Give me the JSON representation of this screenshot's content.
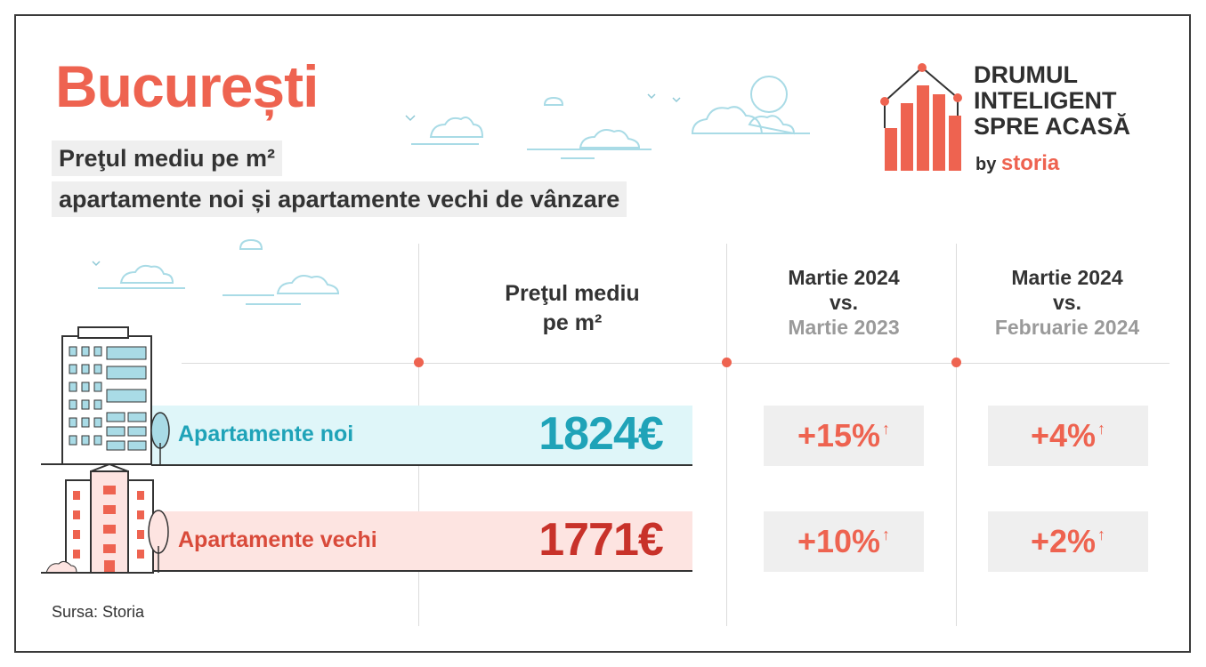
{
  "header": {
    "title": "București",
    "subtitle_line1": "Preţul mediu pe m²",
    "subtitle_line2": "apartamente noi și apartamente vechi de vânzare"
  },
  "logo": {
    "line1": "DRUMUL",
    "line2": "INTELIGENT",
    "line3": "SPRE ACASĂ",
    "by": "by",
    "brand": "storia"
  },
  "table": {
    "columns": {
      "price": {
        "line1": "Preţul mediu",
        "line2": "pe m²"
      },
      "yoy": {
        "line1": "Martie 2024",
        "line2": "vs.",
        "line3": "Martie 2023"
      },
      "mom": {
        "line1": "Martie 2024",
        "line2": "vs.",
        "line3": "Februarie 2024"
      }
    },
    "rows": [
      {
        "label": "Apartamente noi",
        "price": "1824€",
        "yoy": "+15%",
        "mom": "+4%"
      },
      {
        "label": "Apartamente vechi",
        "price": "1771€",
        "yoy": "+10%",
        "mom": "+2%"
      }
    ]
  },
  "icons": {
    "up_arrow": "↑"
  },
  "colors": {
    "accent": "#ee6350",
    "new_teal": "#1fa3b8",
    "new_bg": "#dff6f9",
    "old_bg": "#fde4e1",
    "old_red": "#c8322a"
  },
  "footer": {
    "source": "Sursa: Storia"
  }
}
